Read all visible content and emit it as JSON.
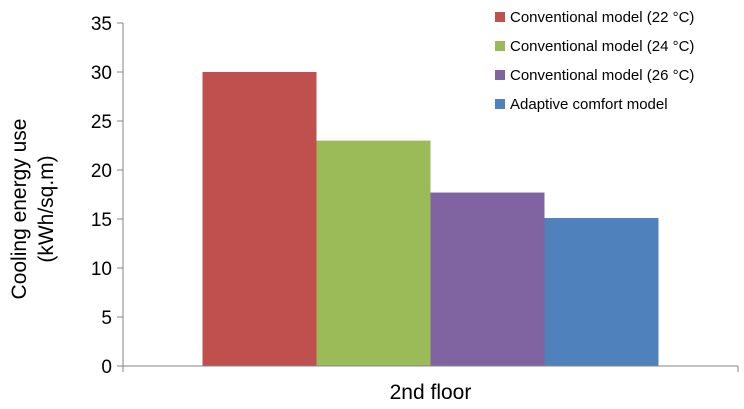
{
  "chart_data": {
    "type": "bar",
    "categories": [
      "2nd floor"
    ],
    "series": [
      {
        "name": "Conventional model (22 °C)",
        "values": [
          30
        ],
        "color": "#c0504d"
      },
      {
        "name": "Conventional model (24 °C)",
        "values": [
          23
        ],
        "color": "#9bbb59"
      },
      {
        "name": "Conventional model (26 °C)",
        "values": [
          17.7
        ],
        "color": "#8064a2"
      },
      {
        "name": "Adaptive comfort model",
        "values": [
          15.1
        ],
        "color": "#4f81bd"
      }
    ],
    "ylabel_lines": [
      "Cooling energy use",
      "(kWh/sq.m)"
    ],
    "xlabel": "",
    "ylim": [
      0,
      35
    ],
    "yticks": [
      0,
      5,
      10,
      15,
      20,
      25,
      30,
      35
    ],
    "grid": false,
    "legend_position": "top-right"
  }
}
